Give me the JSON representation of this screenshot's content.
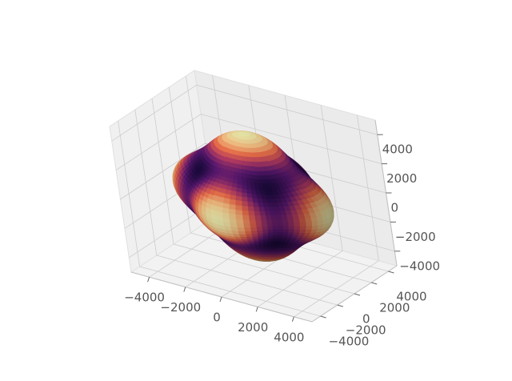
{
  "chart_data": {
    "type": "surface",
    "title": "",
    "xlabel": "",
    "ylabel": "",
    "zlabel": "",
    "xlim": [
      -5000,
      5000
    ],
    "ylim": [
      -5000,
      5000
    ],
    "zlim": [
      -5000,
      5000
    ],
    "x_ticks": [
      "−4000",
      "−2000",
      "0",
      "2000",
      "4000"
    ],
    "y_ticks": [
      "−4000",
      "−2000",
      "0",
      "2000",
      "4000"
    ],
    "z_ticks": [
      "−4000",
      "−2000",
      "0",
      "2000",
      "4000"
    ],
    "grid": true,
    "colormap": "spectral-like (dark purple → orange → pale yellow)",
    "colors": {
      "low": "#1a0a3c",
      "mid": "#d8573c",
      "high": "#f0f0b0",
      "pane": "#f2f2f2",
      "grid": "#cccccc"
    },
    "surface": {
      "shape": "deformed sphere",
      "base_radius": 3800,
      "lobes": "six dark dimples between pale ridges",
      "radius_range": [
        3200,
        4700
      ]
    }
  }
}
